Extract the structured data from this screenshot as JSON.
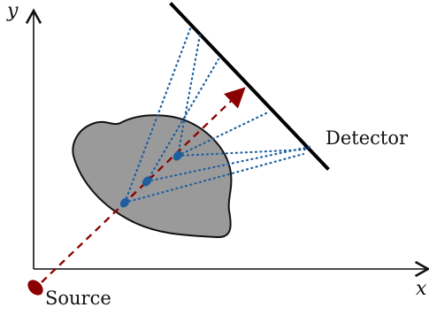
{
  "labels": {
    "y_axis": "y",
    "x_axis": "x",
    "detector": "Detector",
    "source": "Source"
  },
  "colors": {
    "axis": "#111111",
    "object_fill": "#9a9a9a",
    "object_stroke": "#111111",
    "ray": "#8b0000",
    "scatter": "#1f5f9f",
    "detector": "#000000"
  }
}
